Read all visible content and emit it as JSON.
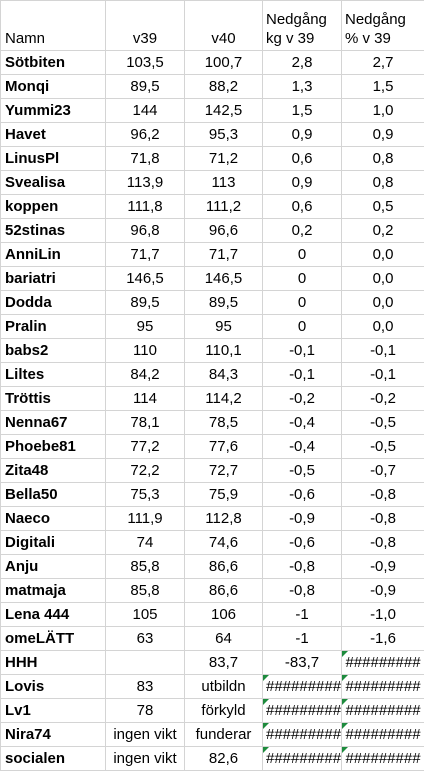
{
  "header": {
    "name": "Namn",
    "v39": "v39",
    "v40": "v40",
    "kg_line1": "Nedgång",
    "kg_line2": "kg v 39",
    "pct_line1": "Nedgång",
    "pct_line2": "% v 39"
  },
  "rows": [
    {
      "name": "Sötbiten",
      "v39": "103,5",
      "v40": "100,7",
      "kg": "2,8",
      "pct": "2,7"
    },
    {
      "name": "Monqi",
      "v39": "89,5",
      "v40": "88,2",
      "kg": "1,3",
      "pct": "1,5"
    },
    {
      "name": "Yummi23",
      "v39": "144",
      "v40": "142,5",
      "kg": "1,5",
      "pct": "1,0"
    },
    {
      "name": "Havet",
      "v39": "96,2",
      "v40": "95,3",
      "kg": "0,9",
      "pct": "0,9"
    },
    {
      "name": "LinusPl",
      "v39": "71,8",
      "v40": "71,2",
      "kg": "0,6",
      "pct": "0,8"
    },
    {
      "name": "Svealisa",
      "v39": "113,9",
      "v40": "113",
      "kg": "0,9",
      "pct": "0,8"
    },
    {
      "name": "koppen",
      "v39": "111,8",
      "v40": "111,2",
      "kg": "0,6",
      "pct": "0,5"
    },
    {
      "name": "52stinas",
      "v39": "96,8",
      "v40": "96,6",
      "kg": "0,2",
      "pct": "0,2"
    },
    {
      "name": "AnniLin",
      "v39": "71,7",
      "v40": "71,7",
      "kg": "0",
      "pct": "0,0"
    },
    {
      "name": "bariatri",
      "v39": "146,5",
      "v40": "146,5",
      "kg": "0",
      "pct": "0,0"
    },
    {
      "name": "Dodda",
      "v39": "89,5",
      "v40": "89,5",
      "kg": "0",
      "pct": "0,0"
    },
    {
      "name": "Pralin",
      "v39": "95",
      "v40": "95",
      "kg": "0",
      "pct": "0,0"
    },
    {
      "name": "babs2",
      "v39": "110",
      "v40": "110,1",
      "kg": "-0,1",
      "pct": "-0,1"
    },
    {
      "name": "Liltes",
      "v39": "84,2",
      "v40": "84,3",
      "kg": "-0,1",
      "pct": "-0,1"
    },
    {
      "name": "Tröttis",
      "v39": "114",
      "v40": "114,2",
      "kg": "-0,2",
      "pct": "-0,2"
    },
    {
      "name": "Nenna67",
      "v39": "78,1",
      "v40": "78,5",
      "kg": "-0,4",
      "pct": "-0,5"
    },
    {
      "name": "Phoebe81",
      "v39": "77,2",
      "v40": "77,6",
      "kg": "-0,4",
      "pct": "-0,5"
    },
    {
      "name": "Zita48",
      "v39": "72,2",
      "v40": "72,7",
      "kg": "-0,5",
      "pct": "-0,7"
    },
    {
      "name": "Bella50",
      "v39": "75,3",
      "v40": "75,9",
      "kg": "-0,6",
      "pct": "-0,8"
    },
    {
      "name": "Naeco",
      "v39": "111,9",
      "v40": "112,8",
      "kg": "-0,9",
      "pct": "-0,8"
    },
    {
      "name": "Digitali",
      "v39": "74",
      "v40": "74,6",
      "kg": "-0,6",
      "pct": "-0,8"
    },
    {
      "name": "Anju",
      "v39": "85,8",
      "v40": "86,6",
      "kg": "-0,8",
      "pct": "-0,9"
    },
    {
      "name": "matmaja",
      "v39": "85,8",
      "v40": "86,6",
      "kg": "-0,8",
      "pct": "-0,9"
    },
    {
      "name": "Lena 444",
      "v39": "105",
      "v40": "106",
      "kg": "-1",
      "pct": "-1,0"
    },
    {
      "name": "omeLÄTT",
      "v39": "63",
      "v40": "64",
      "kg": "-1",
      "pct": "-1,6"
    },
    {
      "name": "HHH",
      "v39": "",
      "v40": "83,7",
      "kg": "-83,7",
      "pct": "#########",
      "kg_err": false,
      "pct_err": true
    },
    {
      "name": "Lovis",
      "v39": "83",
      "v40": "utbildn",
      "kg": "#########",
      "pct": "#########",
      "kg_err": true,
      "pct_err": true
    },
    {
      "name": "Lv1",
      "v39": "78",
      "v40": "förkyld",
      "kg": "#########",
      "pct": "#########",
      "kg_err": true,
      "pct_err": true
    },
    {
      "name": "Nira74",
      "v39": "ingen vikt",
      "v40": "funderar",
      "kg": "#########",
      "pct": "#########",
      "kg_err": true,
      "pct_err": true
    },
    {
      "name": "socialen",
      "v39": "ingen vikt",
      "v40": "82,6",
      "kg": "#########",
      "pct": "#########",
      "kg_err": true,
      "pct_err": true
    }
  ],
  "colors": {
    "gridline": "#d4d4d4",
    "error_marker": "#1d8b3d"
  }
}
